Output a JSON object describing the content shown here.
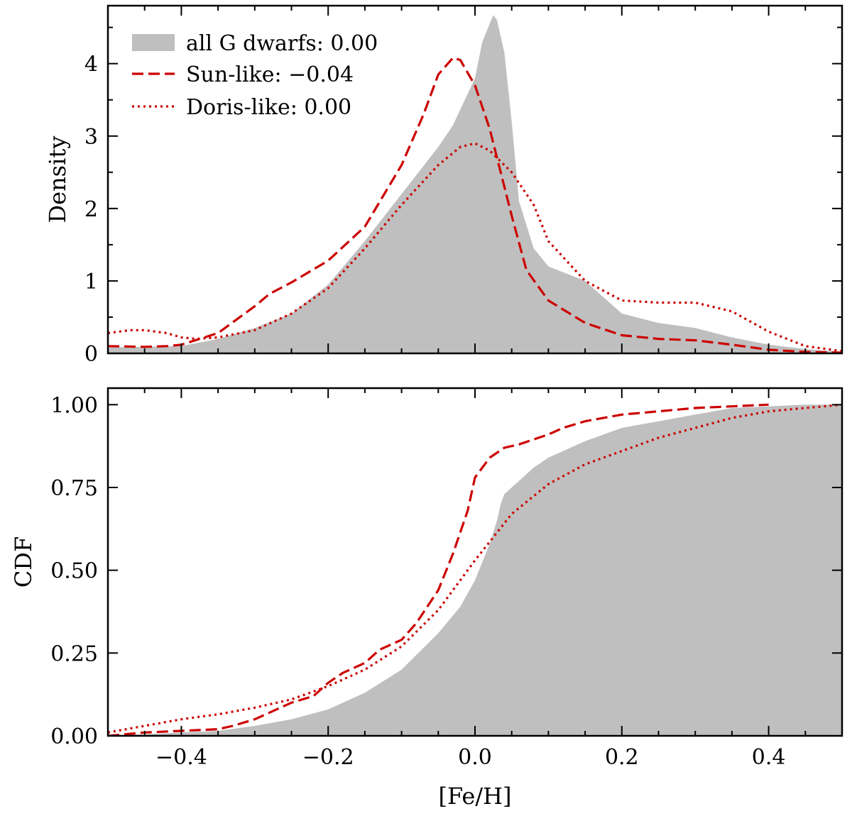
{
  "colors": {
    "fill": "#bfbfbf",
    "line": "#cc0000",
    "axis": "#000000"
  },
  "chart_data": [
    {
      "type": "area",
      "panel": "top",
      "title": "",
      "xlabel": "",
      "ylabel": "Density",
      "xlim": [
        -0.5,
        0.5
      ],
      "ylim": [
        0,
        4.8
      ],
      "xticks": [
        -0.4,
        -0.2,
        0.0,
        0.2,
        0.4
      ],
      "yticks": [
        0,
        1,
        2,
        3,
        4
      ],
      "yticklabels": [
        "0",
        "1",
        "2",
        "3",
        "4"
      ],
      "legend_position": "top-left",
      "series": [
        {
          "name": "all G dwarfs: 0.00",
          "style": "fill",
          "x": [
            -0.5,
            -0.45,
            -0.4,
            -0.35,
            -0.3,
            -0.25,
            -0.2,
            -0.15,
            -0.1,
            -0.05,
            -0.03,
            0.0,
            0.01,
            0.02,
            0.025,
            0.03,
            0.04,
            0.05,
            0.06,
            0.08,
            0.1,
            0.15,
            0.2,
            0.25,
            0.3,
            0.35,
            0.4,
            0.45,
            0.5
          ],
          "y": [
            0.08,
            0.09,
            0.1,
            0.2,
            0.35,
            0.55,
            0.95,
            1.55,
            2.2,
            2.85,
            3.15,
            3.8,
            4.3,
            4.55,
            4.67,
            4.6,
            4.15,
            3.2,
            2.1,
            1.45,
            1.2,
            1.0,
            0.55,
            0.42,
            0.35,
            0.22,
            0.12,
            0.06,
            0.02
          ]
        },
        {
          "name": "Sun-like: −0.04",
          "style": "dashed",
          "x": [
            -0.5,
            -0.45,
            -0.42,
            -0.4,
            -0.35,
            -0.3,
            -0.28,
            -0.25,
            -0.2,
            -0.15,
            -0.1,
            -0.07,
            -0.05,
            -0.03,
            -0.02,
            0.0,
            0.02,
            0.03,
            0.05,
            0.07,
            0.1,
            0.15,
            0.2,
            0.25,
            0.3,
            0.35,
            0.4,
            0.45,
            0.5
          ],
          "y": [
            0.1,
            0.09,
            0.1,
            0.12,
            0.28,
            0.65,
            0.82,
            0.98,
            1.28,
            1.75,
            2.6,
            3.3,
            3.85,
            4.08,
            4.05,
            3.7,
            3.1,
            2.7,
            1.9,
            1.15,
            0.73,
            0.42,
            0.25,
            0.2,
            0.18,
            0.12,
            0.05,
            0.02,
            0.01
          ]
        },
        {
          "name": "Doris-like: 0.00",
          "style": "dotted",
          "x": [
            -0.5,
            -0.47,
            -0.45,
            -0.42,
            -0.4,
            -0.38,
            -0.35,
            -0.3,
            -0.25,
            -0.2,
            -0.15,
            -0.1,
            -0.05,
            -0.02,
            0.0,
            0.02,
            0.05,
            0.08,
            0.1,
            0.15,
            0.2,
            0.25,
            0.3,
            0.35,
            0.4,
            0.45,
            0.5
          ],
          "y": [
            0.28,
            0.32,
            0.32,
            0.28,
            0.22,
            0.2,
            0.22,
            0.32,
            0.55,
            0.9,
            1.45,
            2.05,
            2.6,
            2.85,
            2.9,
            2.8,
            2.5,
            2.05,
            1.55,
            1.0,
            0.73,
            0.7,
            0.7,
            0.58,
            0.3,
            0.1,
            0.03
          ]
        }
      ]
    },
    {
      "type": "area",
      "panel": "bottom",
      "title": "",
      "xlabel": "[Fe/H]",
      "ylabel": "CDF",
      "xlim": [
        -0.5,
        0.5
      ],
      "ylim": [
        0,
        1.05
      ],
      "xticks": [
        -0.4,
        -0.2,
        0.0,
        0.2,
        0.4
      ],
      "xticklabels": [
        "−0.4",
        "−0.2",
        "0.0",
        "0.2",
        "0.4"
      ],
      "yticks": [
        0,
        0.25,
        0.5,
        0.75,
        1.0
      ],
      "yticklabels": [
        "0.00",
        "0.25",
        "0.50",
        "0.75",
        "1.00"
      ],
      "series": [
        {
          "name": "all G dwarfs",
          "style": "fill",
          "x": [
            -0.5,
            -0.45,
            -0.4,
            -0.35,
            -0.3,
            -0.25,
            -0.2,
            -0.15,
            -0.1,
            -0.05,
            -0.02,
            0.0,
            0.02,
            0.03,
            0.035,
            0.04,
            0.05,
            0.06,
            0.08,
            0.1,
            0.15,
            0.2,
            0.25,
            0.3,
            0.35,
            0.4,
            0.45,
            0.5
          ],
          "y": [
            0.0,
            0.005,
            0.01,
            0.015,
            0.03,
            0.05,
            0.08,
            0.13,
            0.2,
            0.31,
            0.39,
            0.47,
            0.58,
            0.65,
            0.7,
            0.73,
            0.75,
            0.77,
            0.81,
            0.84,
            0.89,
            0.93,
            0.95,
            0.97,
            0.99,
            0.995,
            1.0,
            1.0
          ]
        },
        {
          "name": "Sun-like",
          "style": "dashed",
          "x": [
            -0.5,
            -0.45,
            -0.4,
            -0.35,
            -0.33,
            -0.3,
            -0.28,
            -0.25,
            -0.22,
            -0.2,
            -0.18,
            -0.15,
            -0.13,
            -0.1,
            -0.08,
            -0.05,
            -0.03,
            -0.01,
            0.0,
            0.02,
            0.04,
            0.06,
            0.08,
            0.1,
            0.12,
            0.15,
            0.2,
            0.25,
            0.3,
            0.35,
            0.4
          ],
          "y": [
            0.0,
            0.01,
            0.015,
            0.02,
            0.03,
            0.05,
            0.07,
            0.1,
            0.12,
            0.16,
            0.19,
            0.22,
            0.26,
            0.29,
            0.34,
            0.44,
            0.55,
            0.68,
            0.78,
            0.84,
            0.87,
            0.88,
            0.895,
            0.91,
            0.93,
            0.95,
            0.97,
            0.98,
            0.99,
            0.995,
            1.0
          ]
        },
        {
          "name": "Doris-like",
          "style": "dotted",
          "x": [
            -0.5,
            -0.45,
            -0.4,
            -0.35,
            -0.3,
            -0.25,
            -0.2,
            -0.15,
            -0.1,
            -0.05,
            0.0,
            0.05,
            0.1,
            0.15,
            0.2,
            0.25,
            0.3,
            0.35,
            0.4,
            0.45,
            0.5
          ],
          "y": [
            0.01,
            0.03,
            0.05,
            0.065,
            0.085,
            0.11,
            0.15,
            0.2,
            0.27,
            0.38,
            0.53,
            0.67,
            0.76,
            0.82,
            0.86,
            0.9,
            0.93,
            0.96,
            0.98,
            0.99,
            1.0
          ]
        }
      ]
    }
  ]
}
